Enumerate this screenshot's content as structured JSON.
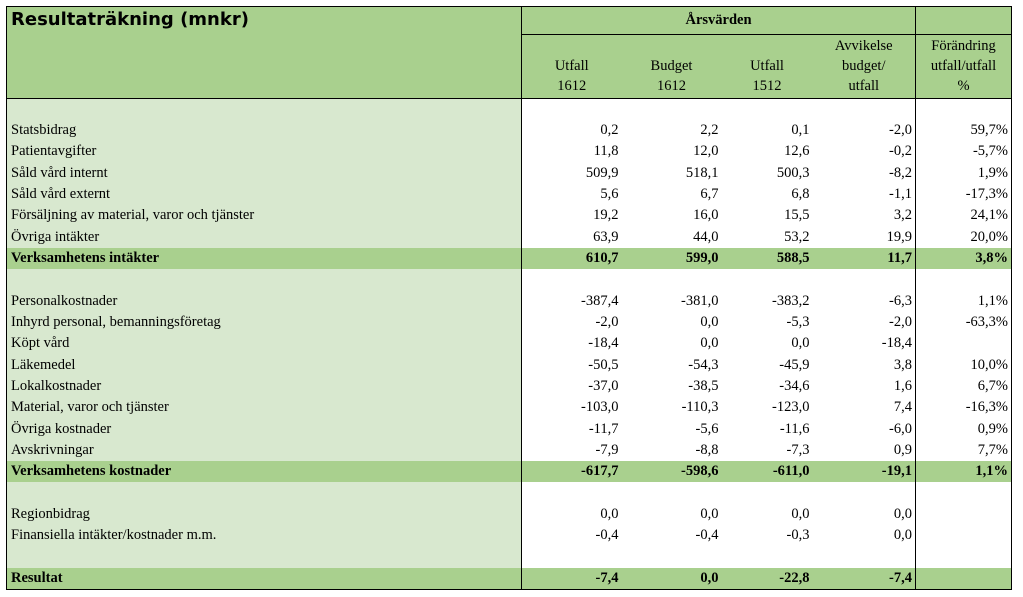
{
  "table": {
    "title": "Resultaträkning (mnkr)",
    "group_header": "Årsvärden",
    "columns": [
      [
        "Utfall",
        "1612"
      ],
      [
        "Budget",
        "1612"
      ],
      [
        "Utfall",
        "1512"
      ],
      [
        "Avvikelse",
        "budget/",
        "utfall"
      ],
      [
        "Förändring",
        "utfall/utfall",
        "%"
      ]
    ],
    "rows": [
      {
        "type": "spacer"
      },
      {
        "type": "data",
        "label": "Statsbidrag",
        "values": [
          "0,2",
          "2,2",
          "0,1",
          "-2,0",
          "59,7%"
        ]
      },
      {
        "type": "data",
        "label": "Patientavgifter",
        "values": [
          "11,8",
          "12,0",
          "12,6",
          "-0,2",
          "-5,7%"
        ]
      },
      {
        "type": "data",
        "label": "Såld vård internt",
        "values": [
          "509,9",
          "518,1",
          "500,3",
          "-8,2",
          "1,9%"
        ]
      },
      {
        "type": "data",
        "label": "Såld vård externt",
        "values": [
          "5,6",
          "6,7",
          "6,8",
          "-1,1",
          "-17,3%"
        ]
      },
      {
        "type": "data",
        "label": "Försäljning av material, varor och tjänster",
        "values": [
          "19,2",
          "16,0",
          "15,5",
          "3,2",
          "24,1%"
        ]
      },
      {
        "type": "data",
        "label": "Övriga intäkter",
        "values": [
          "63,9",
          "44,0",
          "53,2",
          "19,9",
          "20,0%"
        ]
      },
      {
        "type": "total",
        "label": "Verksamhetens intäkter",
        "values": [
          "610,7",
          "599,0",
          "588,5",
          "11,7",
          "3,8%"
        ]
      },
      {
        "type": "spacer"
      },
      {
        "type": "data",
        "label": "Personalkostnader",
        "values": [
          "-387,4",
          "-381,0",
          "-383,2",
          "-6,3",
          "1,1%"
        ]
      },
      {
        "type": "data",
        "label": "Inhyrd personal, bemanningsföretag",
        "values": [
          "-2,0",
          "0,0",
          "-5,3",
          "-2,0",
          "-63,3%"
        ]
      },
      {
        "type": "data",
        "label": "Köpt vård",
        "values": [
          "-18,4",
          "0,0",
          "0,0",
          "-18,4",
          ""
        ]
      },
      {
        "type": "data",
        "label": "Läkemedel",
        "values": [
          "-50,5",
          "-54,3",
          "-45,9",
          "3,8",
          "10,0%"
        ]
      },
      {
        "type": "data",
        "label": "Lokalkostnader",
        "values": [
          "-37,0",
          "-38,5",
          "-34,6",
          "1,6",
          "6,7%"
        ]
      },
      {
        "type": "data",
        "label": "Material, varor och tjänster",
        "values": [
          "-103,0",
          "-110,3",
          "-123,0",
          "7,4",
          "-16,3%"
        ]
      },
      {
        "type": "data",
        "label": "Övriga kostnader",
        "values": [
          "-11,7",
          "-5,6",
          "-11,6",
          "-6,0",
          "0,9%"
        ]
      },
      {
        "type": "data",
        "label": "Avskrivningar",
        "values": [
          "-7,9",
          "-8,8",
          "-7,3",
          "0,9",
          "7,7%"
        ]
      },
      {
        "type": "total",
        "label": "Verksamhetens kostnader",
        "values": [
          "-617,7",
          "-598,6",
          "-611,0",
          "-19,1",
          "1,1%"
        ]
      },
      {
        "type": "spacer"
      },
      {
        "type": "data",
        "label": "Regionbidrag",
        "values": [
          "0,0",
          "0,0",
          "0,0",
          "0,0",
          ""
        ]
      },
      {
        "type": "data",
        "label": "Finansiella intäkter/kostnader m.m.",
        "values": [
          "-0,4",
          "-0,4",
          "-0,3",
          "0,0",
          ""
        ]
      },
      {
        "type": "spacer"
      },
      {
        "type": "total",
        "label": "Resultat",
        "values": [
          "-7,4",
          "0,0",
          "-22,8",
          "-7,4",
          ""
        ]
      }
    ]
  },
  "colors": {
    "header_green": "#a9d08e",
    "label_green": "#d8e8cf",
    "total_green": "#a9d08e"
  }
}
